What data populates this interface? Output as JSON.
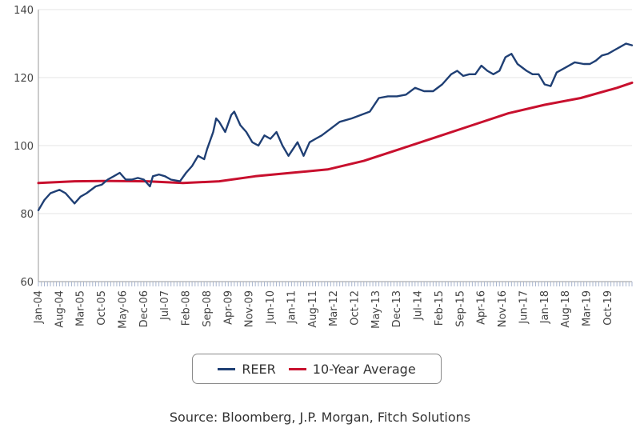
{
  "colors": {
    "reer": "#1f3f74",
    "avg": "#c8102e",
    "grid": "#e5e5e5",
    "axis": "#9a9a9a"
  },
  "source": "Source: Bloomberg, J.P. Morgan, Fitch Solutions",
  "chart_data": {
    "type": "line",
    "title": "",
    "xlabel": "",
    "ylabel": "",
    "ylim": [
      60,
      140
    ],
    "yticks": [
      60,
      80,
      100,
      120,
      140
    ],
    "x_start": "Jan-04",
    "x_end": "Jun-20",
    "grid": "horizontal",
    "legend_position": "bottom",
    "xtick_labels": [
      "Jan-04",
      "Aug-04",
      "Mar-05",
      "Oct-05",
      "May-06",
      "Dec-06",
      "Jul-07",
      "Feb-08",
      "Sep-08",
      "Apr-09",
      "Nov-09",
      "Jun-10",
      "Jan-11",
      "Aug-11",
      "Mar-12",
      "Oct-12",
      "May-13",
      "Dec-13",
      "Jul-14",
      "Feb-15",
      "Sep-15",
      "Apr-16",
      "Nov-16",
      "Jun-17",
      "Jan-18",
      "Aug-18",
      "Mar-19",
      "Oct-19"
    ],
    "series": [
      {
        "name": "REER",
        "color": "#1f3f74",
        "points": [
          [
            "Jan-04",
            81
          ],
          [
            "Mar-04",
            84
          ],
          [
            "May-04",
            86
          ],
          [
            "Aug-04",
            87
          ],
          [
            "Oct-04",
            86
          ],
          [
            "Dec-04",
            84
          ],
          [
            "Jan-05",
            83
          ],
          [
            "Mar-05",
            85
          ],
          [
            "May-05",
            86
          ],
          [
            "Aug-05",
            88
          ],
          [
            "Oct-05",
            88.5
          ],
          [
            "Dec-05",
            90
          ],
          [
            "Feb-06",
            91
          ],
          [
            "Apr-06",
            92
          ],
          [
            "Jun-06",
            90
          ],
          [
            "Aug-06",
            90
          ],
          [
            "Oct-06",
            90.5
          ],
          [
            "Dec-06",
            90
          ],
          [
            "Feb-07",
            88
          ],
          [
            "Mar-07",
            91
          ],
          [
            "May-07",
            91.5
          ],
          [
            "Jul-07",
            91
          ],
          [
            "Sep-07",
            90
          ],
          [
            "Dec-07",
            89.5
          ],
          [
            "Feb-08",
            92
          ],
          [
            "Apr-08",
            94
          ],
          [
            "Jun-08",
            97
          ],
          [
            "Aug-08",
            96
          ],
          [
            "Sep-08",
            99
          ],
          [
            "Nov-08",
            104
          ],
          [
            "Dec-08",
            108
          ],
          [
            "Jan-09",
            107
          ],
          [
            "Mar-09",
            104
          ],
          [
            "May-09",
            109
          ],
          [
            "Jun-09",
            110
          ],
          [
            "Aug-09",
            106
          ],
          [
            "Oct-09",
            104
          ],
          [
            "Dec-09",
            101
          ],
          [
            "Feb-10",
            100
          ],
          [
            "Apr-10",
            103
          ],
          [
            "Jun-10",
            102
          ],
          [
            "Aug-10",
            104
          ],
          [
            "Oct-10",
            100
          ],
          [
            "Dec-10",
            97
          ],
          [
            "Mar-11",
            101
          ],
          [
            "May-11",
            97
          ],
          [
            "Jul-11",
            101
          ],
          [
            "Sep-11",
            102
          ],
          [
            "Nov-11",
            103
          ],
          [
            "Feb-12",
            105
          ],
          [
            "May-12",
            107
          ],
          [
            "Sep-12",
            108
          ],
          [
            "Dec-12",
            109
          ],
          [
            "Mar-13",
            110
          ],
          [
            "Jun-13",
            114
          ],
          [
            "Sep-13",
            114.5
          ],
          [
            "Dec-13",
            114.5
          ],
          [
            "Mar-14",
            115
          ],
          [
            "Jun-14",
            117
          ],
          [
            "Sep-14",
            116
          ],
          [
            "Dec-14",
            116
          ],
          [
            "Mar-15",
            118
          ],
          [
            "Jun-15",
            121
          ],
          [
            "Aug-15",
            122
          ],
          [
            "Oct-15",
            120.5
          ],
          [
            "Dec-15",
            121
          ],
          [
            "Feb-16",
            121
          ],
          [
            "Apr-16",
            123.5
          ],
          [
            "Jun-16",
            122
          ],
          [
            "Aug-16",
            121
          ],
          [
            "Oct-16",
            122
          ],
          [
            "Dec-16",
            126
          ],
          [
            "Feb-17",
            127
          ],
          [
            "Apr-17",
            124
          ],
          [
            "Jul-17",
            122
          ],
          [
            "Sep-17",
            121
          ],
          [
            "Nov-17",
            121
          ],
          [
            "Jan-18",
            118
          ],
          [
            "Mar-18",
            117.5
          ],
          [
            "May-18",
            121.5
          ],
          [
            "Aug-18",
            123
          ],
          [
            "Nov-18",
            124.5
          ],
          [
            "Feb-19",
            124
          ],
          [
            "Apr-19",
            124
          ],
          [
            "Jun-19",
            125
          ],
          [
            "Aug-19",
            126.5
          ],
          [
            "Oct-19",
            127
          ],
          [
            "Dec-19",
            128
          ],
          [
            "Feb-20",
            129
          ],
          [
            "Apr-20",
            130
          ],
          [
            "Jun-20",
            129.5
          ]
        ]
      },
      {
        "name": "10-Year Average",
        "color": "#c8102e",
        "points": [
          [
            "Jan-04",
            89
          ],
          [
            "Jan-05",
            89.5
          ],
          [
            "Jan-06",
            89.6
          ],
          [
            "Jan-07",
            89.5
          ],
          [
            "Jan-08",
            89
          ],
          [
            "Jan-09",
            89.5
          ],
          [
            "Jan-10",
            91
          ],
          [
            "Jan-11",
            92
          ],
          [
            "Jan-12",
            93
          ],
          [
            "Jan-13",
            95.5
          ],
          [
            "Jan-14",
            99
          ],
          [
            "Jan-15",
            102.5
          ],
          [
            "Jan-16",
            106
          ],
          [
            "Jan-17",
            109.5
          ],
          [
            "Jan-18",
            112
          ],
          [
            "Jan-19",
            114
          ],
          [
            "Jan-20",
            117
          ],
          [
            "Jun-20",
            118.5
          ]
        ]
      }
    ]
  }
}
